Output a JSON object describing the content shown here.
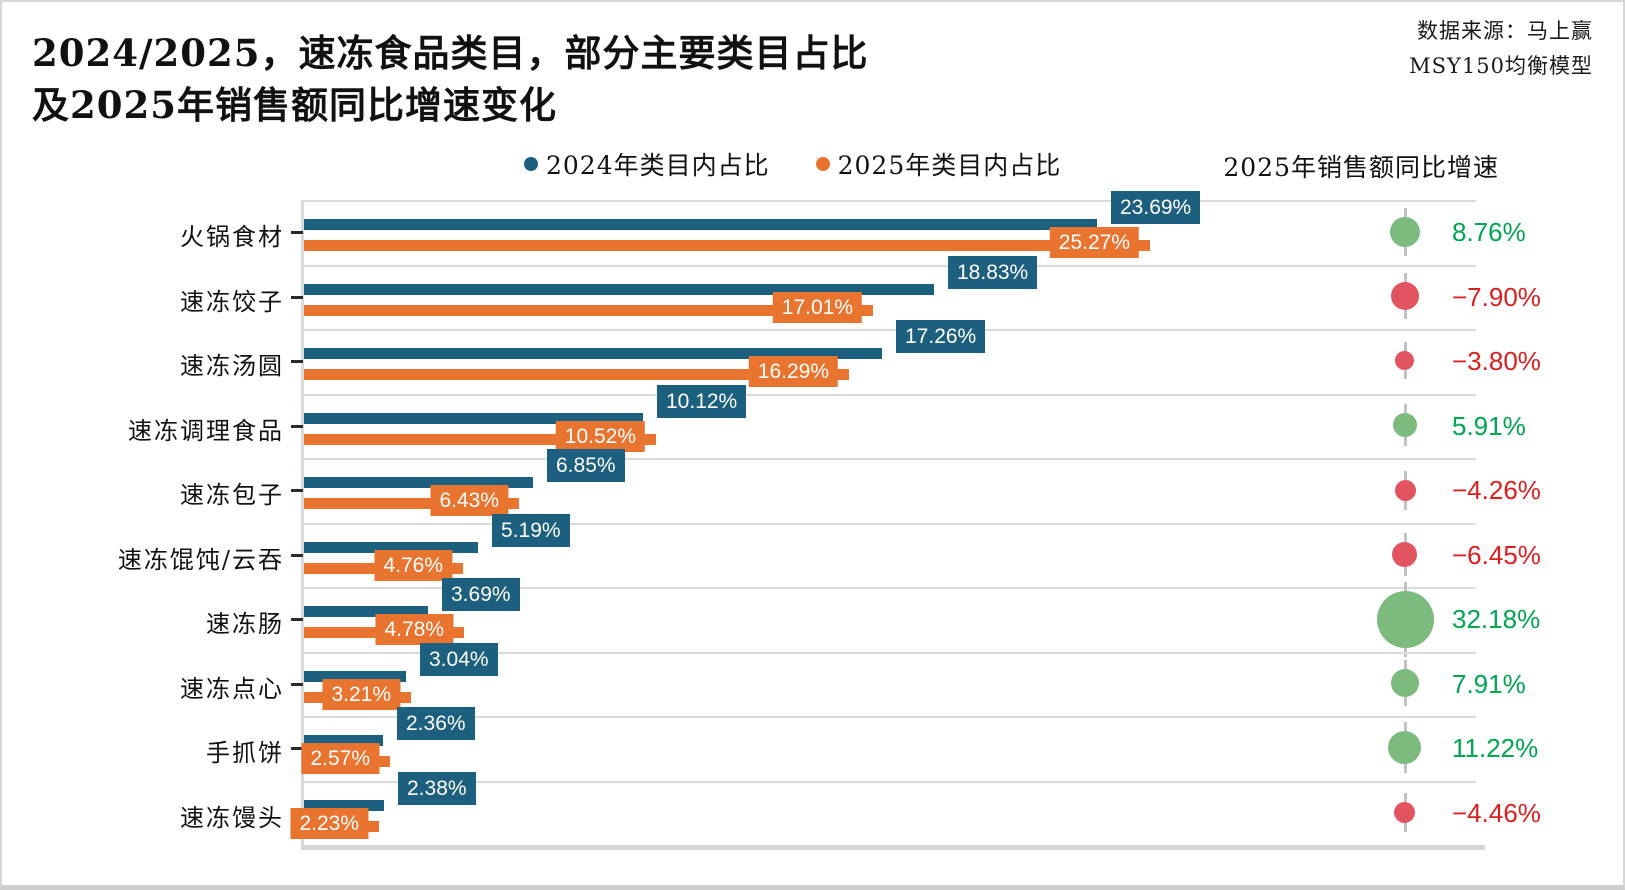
{
  "title": {
    "line1": "2024/2025，速冻食品类目，部分主要类目占比",
    "line2": "及2025年销售额同比增速变化"
  },
  "source": {
    "line1": "数据来源：马上赢",
    "line2": "MSY150均衡模型"
  },
  "legend": [
    {
      "label": "2024年类目内占比",
      "color": "#1d5f7e"
    },
    {
      "label": "2025年类目内占比",
      "color": "#e8742f"
    }
  ],
  "growth_header": "2025年销售额同比增速",
  "colors": {
    "bar_2024": "#1d5f7e",
    "bar_2025": "#e8742f",
    "bubble_positive": "#7cba7d",
    "bubble_negative": "#e25460",
    "text_positive": "#00a551",
    "text_negative": "#dc1e1e",
    "grid": "#dbdbdb",
    "stem": "#c2c2c2"
  },
  "chart_data": {
    "type": "bar",
    "orientation": "horizontal",
    "categories": [
      "火锅食材",
      "速冻饺子",
      "速冻汤圆",
      "速冻调理食品",
      "速冻包子",
      "速冻馄饨/云吞",
      "速冻肠",
      "速冻点心",
      "手抓饼",
      "速冻馒头"
    ],
    "series": [
      {
        "name": "2024年类目内占比",
        "color": "#1d5f7e",
        "values": [
          23.69,
          18.83,
          17.26,
          10.12,
          6.85,
          5.19,
          3.69,
          3.04,
          2.36,
          2.38
        ],
        "labels": [
          "23.69%",
          "18.83%",
          "17.26%",
          "10.12%",
          "6.85%",
          "5.19%",
          "3.69%",
          "3.04%",
          "2.36%",
          "2.38%"
        ]
      },
      {
        "name": "2025年类目内占比",
        "color": "#e8742f",
        "values": [
          25.27,
          17.01,
          16.29,
          10.52,
          6.43,
          4.76,
          4.78,
          3.21,
          2.57,
          2.23
        ],
        "labels": [
          "25.27%",
          "17.01%",
          "16.29%",
          "10.52%",
          "6.43%",
          "4.76%",
          "4.78%",
          "3.21%",
          "2.57%",
          "2.23%"
        ]
      }
    ],
    "growth": {
      "name": "2025年销售额同比增速",
      "values": [
        8.76,
        -7.9,
        -3.8,
        5.91,
        -4.26,
        -6.45,
        32.18,
        7.91,
        11.22,
        -4.46
      ],
      "labels": [
        "8.76%",
        "−7.90%",
        "−3.80%",
        "5.91%",
        "−4.26%",
        "−6.45%",
        "32.18%",
        "7.91%",
        "11.22%",
        "−4.46%"
      ]
    },
    "xlim": [
      0,
      35
    ],
    "grid": "horizontal-row-separators",
    "legend_position": "top-center"
  }
}
